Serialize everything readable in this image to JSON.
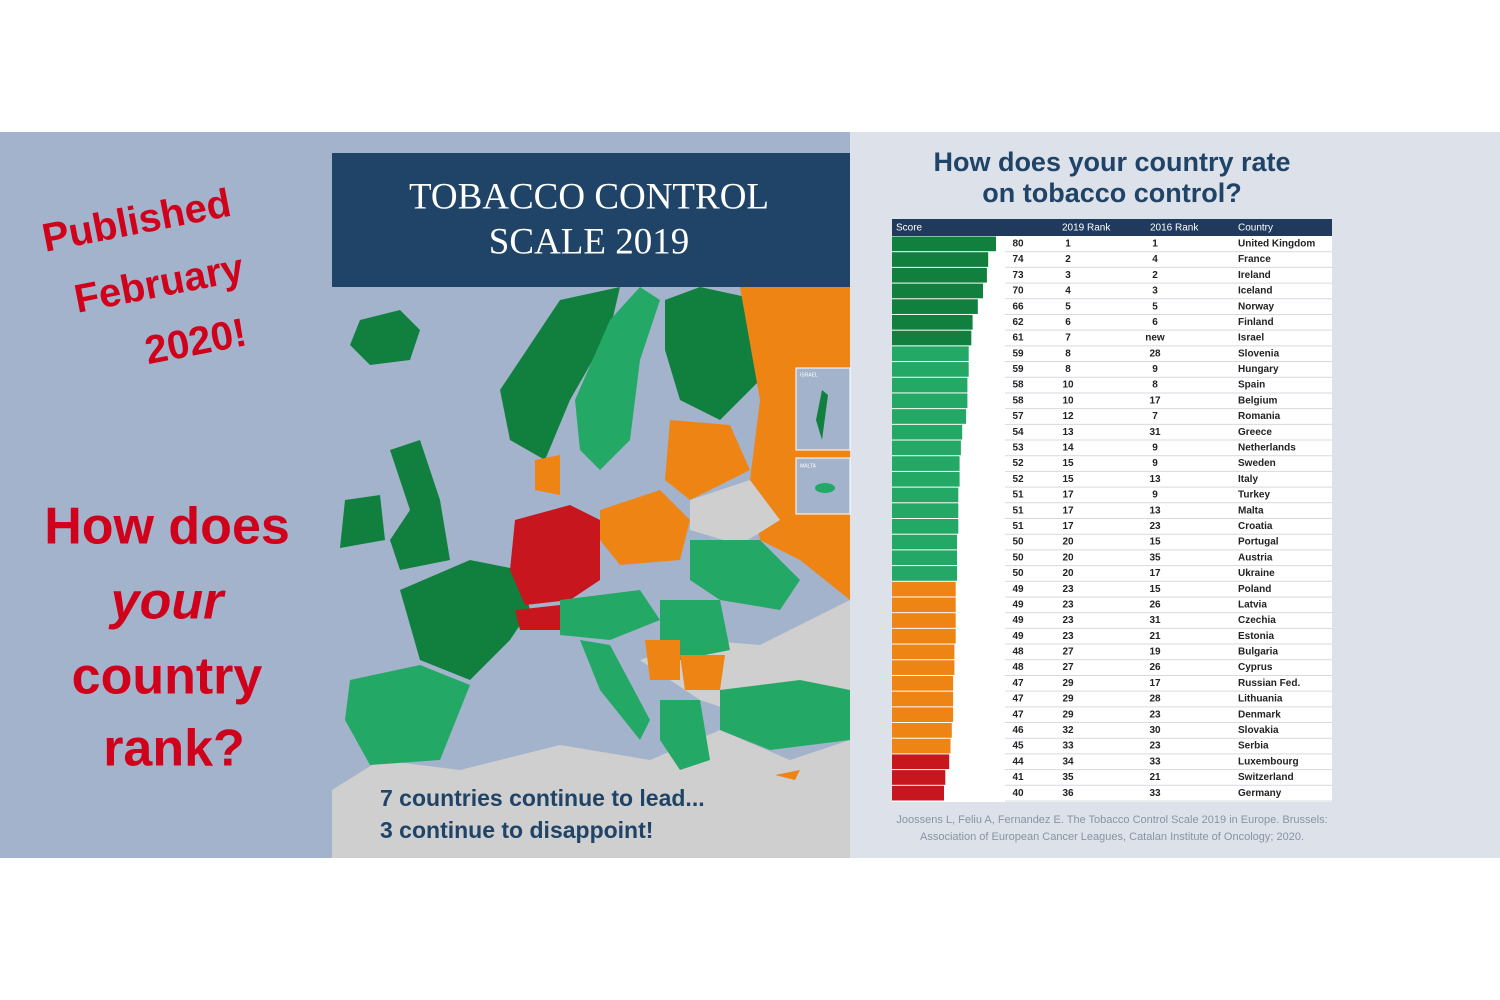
{
  "left": {
    "published": [
      "Published",
      "February",
      "2020!"
    ],
    "question": [
      "How does",
      "your",
      "country",
      "rank?"
    ]
  },
  "map": {
    "title": [
      "TOBACCO CONTROL",
      "SCALE 2019"
    ],
    "insets": [
      "ISRAEL",
      "MALTA"
    ],
    "caption": [
      "7 countries continue to lead...",
      "3 continue to disappoint!"
    ]
  },
  "panel": {
    "title": [
      "How does your country rate",
      "on tobacco control?"
    ],
    "table": {
      "header": [
        "Score",
        "2019 Rank",
        "2016 Rank",
        "Country"
      ],
      "rows": [
        {
          "score": 80,
          "rank_2019": 1,
          "rank_2016": 1,
          "country": "United Kingdom",
          "color": "#11803f"
        },
        {
          "score": 74,
          "rank_2019": 2,
          "rank_2016": 4,
          "country": "France",
          "color": "#11803f"
        },
        {
          "score": 73,
          "rank_2019": 3,
          "rank_2016": 2,
          "country": "Ireland",
          "color": "#11803f"
        },
        {
          "score": 70,
          "rank_2019": 4,
          "rank_2016": 3,
          "country": "Iceland",
          "color": "#11803f"
        },
        {
          "score": 66,
          "rank_2019": 5,
          "rank_2016": 5,
          "country": "Norway",
          "color": "#11803f"
        },
        {
          "score": 62,
          "rank_2019": 6,
          "rank_2016": 6,
          "country": "Finland",
          "color": "#11803f"
        },
        {
          "score": 61,
          "rank_2019": 7,
          "rank_2016": "new",
          "country": "Israel",
          "color": "#11803f"
        },
        {
          "score": 59,
          "rank_2019": 8,
          "rank_2016": 28,
          "country": "Slovenia",
          "color": "#24a865"
        },
        {
          "score": 59,
          "rank_2019": 8,
          "rank_2016": 9,
          "country": "Hungary",
          "color": "#24a865"
        },
        {
          "score": 58,
          "rank_2019": 10,
          "rank_2016": 8,
          "country": "Spain",
          "color": "#24a865"
        },
        {
          "score": 58,
          "rank_2019": 10,
          "rank_2016": 17,
          "country": "Belgium",
          "color": "#24a865"
        },
        {
          "score": 57,
          "rank_2019": 12,
          "rank_2016": 7,
          "country": "Romania",
          "color": "#24a865"
        },
        {
          "score": 54,
          "rank_2019": 13,
          "rank_2016": 31,
          "country": "Greece",
          "color": "#24a865"
        },
        {
          "score": 53,
          "rank_2019": 14,
          "rank_2016": 9,
          "country": "Netherlands",
          "color": "#24a865"
        },
        {
          "score": 52,
          "rank_2019": 15,
          "rank_2016": 9,
          "country": "Sweden",
          "color": "#24a865"
        },
        {
          "score": 52,
          "rank_2019": 15,
          "rank_2016": 13,
          "country": "Italy",
          "color": "#24a865"
        },
        {
          "score": 51,
          "rank_2019": 17,
          "rank_2016": 9,
          "country": "Turkey",
          "color": "#24a865"
        },
        {
          "score": 51,
          "rank_2019": 17,
          "rank_2016": 13,
          "country": "Malta",
          "color": "#24a865"
        },
        {
          "score": 51,
          "rank_2019": 17,
          "rank_2016": 23,
          "country": "Croatia",
          "color": "#24a865"
        },
        {
          "score": 50,
          "rank_2019": 20,
          "rank_2016": 15,
          "country": "Portugal",
          "color": "#24a865"
        },
        {
          "score": 50,
          "rank_2019": 20,
          "rank_2016": 35,
          "country": "Austria",
          "color": "#24a865"
        },
        {
          "score": 50,
          "rank_2019": 20,
          "rank_2016": 17,
          "country": "Ukraine",
          "color": "#24a865"
        },
        {
          "score": 49,
          "rank_2019": 23,
          "rank_2016": 15,
          "country": "Poland",
          "color": "#ee8414"
        },
        {
          "score": 49,
          "rank_2019": 23,
          "rank_2016": 26,
          "country": "Latvia",
          "color": "#ee8414"
        },
        {
          "score": 49,
          "rank_2019": 23,
          "rank_2016": 31,
          "country": "Czechia",
          "color": "#ee8414"
        },
        {
          "score": 49,
          "rank_2019": 23,
          "rank_2016": 21,
          "country": "Estonia",
          "color": "#ee8414"
        },
        {
          "score": 48,
          "rank_2019": 27,
          "rank_2016": 19,
          "country": "Bulgaria",
          "color": "#ee8414"
        },
        {
          "score": 48,
          "rank_2019": 27,
          "rank_2016": 26,
          "country": "Cyprus",
          "color": "#ee8414"
        },
        {
          "score": 47,
          "rank_2019": 29,
          "rank_2016": 17,
          "country": "Russian Fed.",
          "color": "#ee8414"
        },
        {
          "score": 47,
          "rank_2019": 29,
          "rank_2016": 28,
          "country": "Lithuania",
          "color": "#ee8414"
        },
        {
          "score": 47,
          "rank_2019": 29,
          "rank_2016": 23,
          "country": "Denmark",
          "color": "#ee8414"
        },
        {
          "score": 46,
          "rank_2019": 32,
          "rank_2016": 30,
          "country": "Slovakia",
          "color": "#ee8414"
        },
        {
          "score": 45,
          "rank_2019": 33,
          "rank_2016": 23,
          "country": "Serbia",
          "color": "#ee8414"
        },
        {
          "score": 44,
          "rank_2019": 34,
          "rank_2016": 33,
          "country": "Luxembourg",
          "color": "#c8161e"
        },
        {
          "score": 41,
          "rank_2019": 35,
          "rank_2016": 21,
          "country": "Switzerland",
          "color": "#c8161e"
        },
        {
          "score": 40,
          "rank_2019": 36,
          "rank_2016": 33,
          "country": "Germany",
          "color": "#c8161e"
        }
      ]
    },
    "citation": [
      "Joossens L, Feliu A, Fernandez E. The Tobacco Control Scale 2019 in Europe. Brussels:",
      "Association of European Cancer Leagues, Catalan Institute of Oncology; 2020."
    ]
  }
}
